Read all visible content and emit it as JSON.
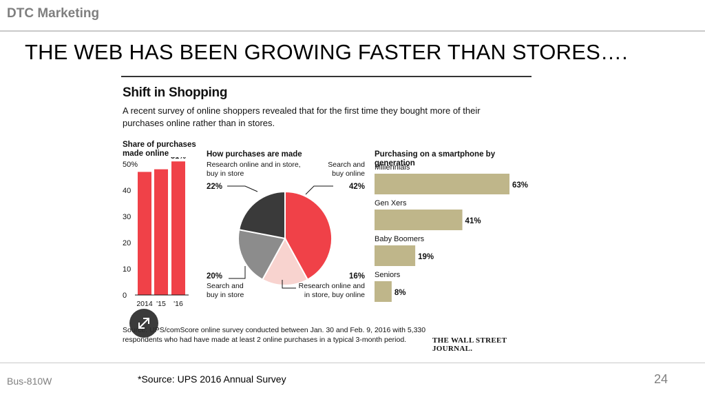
{
  "header": {
    "title": "DTC Marketing"
  },
  "slide": {
    "title": "THE WEB HAS BEEN GROWING FASTER THAN STORES…."
  },
  "footer": {
    "course": "Bus-810W",
    "source": "*Source: UPS 2016 Annual Survey",
    "page": "24"
  },
  "infographic": {
    "title": "Shift in Shopping",
    "subtitle": "A recent survey of online shoppers revealed that for the first time they bought more of their purchases online rather than in stores.",
    "source_note": "Source: UPS/comScore online survey conducted between Jan. 30 and Feb. 9, 2016 with 5,330 respondents who had have made at least 2 online purchases in a typical 3-month period.",
    "publisher": "THE WALL STREET JOURNAL.",
    "colors": {
      "red": "#f04148",
      "olive": "#bfb68a",
      "dark": "#3a3a3a",
      "grey": "#8c8c8c",
      "pink": "#f8d3cf"
    },
    "expand_icon": "expand-icon"
  },
  "chart_data": [
    {
      "type": "bar",
      "title": "Share of purchases made online",
      "categories": [
        "2014",
        "'15",
        "'16"
      ],
      "values": [
        47,
        48,
        51
      ],
      "data_labels": [
        "",
        "",
        "51%"
      ],
      "ylim": [
        0,
        50
      ],
      "yticks": [
        "0",
        "10",
        "20",
        "30",
        "40",
        "50%"
      ]
    },
    {
      "type": "pie",
      "title": "How purchases are made",
      "slices": [
        {
          "label": "Search and buy online",
          "value": 42,
          "display": "42%"
        },
        {
          "label": "Research online and in store, buy online",
          "value": 16,
          "display": "16%"
        },
        {
          "label": "Search and buy in store",
          "value": 20,
          "display": "20%"
        },
        {
          "label": "Research online and in store, buy in store",
          "value": 22,
          "display": "22%"
        }
      ]
    },
    {
      "type": "bar",
      "title": "Purchasing on a smartphone by generation",
      "categories": [
        "Millennials",
        "Gen Xers",
        "Baby Boomers",
        "Seniors"
      ],
      "values": [
        63,
        41,
        19,
        8
      ],
      "display": [
        "63%",
        "41%",
        "19%",
        "8%"
      ]
    }
  ]
}
